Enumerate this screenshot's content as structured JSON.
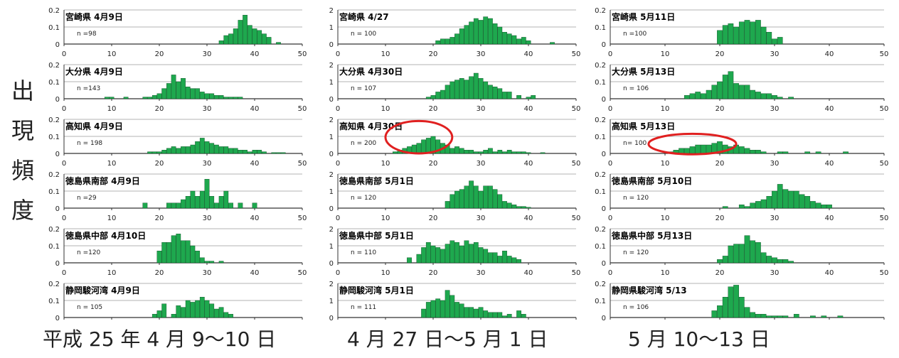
{
  "y_axis_label": [
    "出",
    "現",
    "頻",
    "度"
  ],
  "column_labels": [
    "平成 25 年 4 月 9～10 日",
    "4 月 27 日～5 月 1 日",
    "5 月 10～13 日"
  ],
  "colors": {
    "bar": "#1ea84e",
    "bar_edge": "#0b4a22",
    "axis": "#333333",
    "highlight_circle": "#e02020"
  },
  "chart_data": [
    {
      "type": "bar",
      "title": "宮崎県 4月9日",
      "n_label": "n =98",
      "xlim": [
        0,
        50
      ],
      "ylim": [
        0,
        0.2
      ],
      "yticks": [
        "0",
        "0.1",
        "0.2"
      ],
      "xticks": [
        "0",
        "10",
        "20",
        "30",
        "40",
        "50"
      ],
      "x": [
        33,
        34,
        35,
        36,
        37,
        38,
        39,
        40,
        41,
        42,
        43,
        45
      ],
      "values": [
        0.02,
        0.05,
        0.06,
        0.09,
        0.14,
        0.17,
        0.11,
        0.09,
        0.08,
        0.06,
        0.04,
        0.01
      ]
    },
    {
      "type": "bar",
      "title": "宮崎県 4/27",
      "n_label": "n = 100",
      "xlim": [
        0,
        50
      ],
      "ylim": [
        0,
        2
      ],
      "yticks": [
        "0",
        "1",
        "2"
      ],
      "xticks": [
        "0",
        "10",
        "20",
        "30",
        "40",
        "50"
      ],
      "x": [
        21,
        22,
        23,
        24,
        25,
        26,
        27,
        28,
        29,
        30,
        31,
        32,
        33,
        34,
        35,
        36,
        37,
        38,
        39,
        40,
        45
      ],
      "values": [
        0.2,
        0.3,
        0.3,
        0.4,
        0.6,
        0.9,
        1.1,
        1.3,
        1.5,
        1.4,
        1.6,
        1.5,
        1.2,
        1.0,
        0.7,
        0.6,
        0.5,
        0.3,
        0.4,
        0.2,
        0.1
      ]
    },
    {
      "type": "bar",
      "title": "宮崎県 5月11日",
      "n_label": "n =100",
      "xlim": [
        0,
        50
      ],
      "ylim": [
        0,
        0.2
      ],
      "yticks": [
        "0",
        "0.1",
        "0.2"
      ],
      "xticks": [
        "0",
        "10",
        "20",
        "30",
        "40",
        "50"
      ],
      "x": [
        20,
        21,
        22,
        23,
        24,
        25,
        26,
        27,
        28,
        29,
        30,
        31
      ],
      "values": [
        0.08,
        0.11,
        0.12,
        0.1,
        0.13,
        0.14,
        0.13,
        0.14,
        0.1,
        0.07,
        0.03,
        0.04
      ]
    },
    {
      "type": "bar",
      "title": "大分県 4月9日",
      "n_label": "n =143",
      "xlim": [
        0,
        50
      ],
      "ylim": [
        0,
        0.2
      ],
      "yticks": [
        "0",
        "0.1",
        "0.2"
      ],
      "xticks": [
        "0",
        "10",
        "20",
        "30",
        "40",
        "50"
      ],
      "x": [
        9,
        10,
        13,
        17,
        18,
        19,
        20,
        21,
        22,
        23,
        24,
        25,
        26,
        27,
        28,
        29,
        30,
        31,
        32,
        33,
        34,
        35,
        36,
        37
      ],
      "values": [
        0.01,
        0.01,
        0.01,
        0.01,
        0.01,
        0.02,
        0.03,
        0.06,
        0.09,
        0.14,
        0.1,
        0.12,
        0.07,
        0.06,
        0.06,
        0.04,
        0.03,
        0.03,
        0.02,
        0.02,
        0.01,
        0.01,
        0.01,
        0.01
      ]
    },
    {
      "type": "bar",
      "title": "大分県 4月30日",
      "n_label": "n = 107",
      "xlim": [
        0,
        50
      ],
      "ylim": [
        0,
        2
      ],
      "yticks": [
        "0",
        "1",
        "2"
      ],
      "xticks": [
        "0",
        "10",
        "20",
        "30",
        "40",
        "50"
      ],
      "x": [
        19,
        20,
        21,
        22,
        23,
        24,
        25,
        26,
        27,
        28,
        29,
        30,
        31,
        32,
        33,
        34,
        35,
        36,
        38,
        40,
        41
      ],
      "values": [
        0.1,
        0.2,
        0.4,
        0.5,
        0.8,
        1.0,
        1.1,
        1.2,
        1.1,
        1.3,
        1.5,
        1.2,
        1.0,
        0.8,
        0.7,
        0.6,
        0.4,
        0.4,
        0.2,
        0.1,
        0.2
      ]
    },
    {
      "type": "bar",
      "title": "大分県 5月13日",
      "n_label": "n = 106",
      "xlim": [
        0,
        50
      ],
      "ylim": [
        0,
        0.2
      ],
      "yticks": [
        "0",
        "0.1",
        "0.2"
      ],
      "xticks": [
        "0",
        "10",
        "20",
        "30",
        "40",
        "50"
      ],
      "x": [
        14,
        15,
        16,
        17,
        18,
        19,
        20,
        21,
        22,
        23,
        24,
        25,
        26,
        27,
        28,
        29,
        30,
        31,
        33
      ],
      "values": [
        0.02,
        0.03,
        0.04,
        0.03,
        0.05,
        0.08,
        0.1,
        0.14,
        0.16,
        0.09,
        0.08,
        0.08,
        0.05,
        0.04,
        0.03,
        0.03,
        0.02,
        0.01,
        0.01
      ]
    },
    {
      "type": "bar",
      "title": "高知県 4月9日",
      "n_label": "n = 198",
      "xlim": [
        0,
        50
      ],
      "ylim": [
        0,
        0.2
      ],
      "yticks": [
        "0",
        "0.1",
        "0.2"
      ],
      "xticks": [
        "0",
        "10",
        "20",
        "30",
        "40",
        "50"
      ],
      "x": [
        18,
        19,
        20,
        21,
        22,
        23,
        24,
        25,
        26,
        27,
        28,
        29,
        30,
        31,
        32,
        33,
        34,
        35,
        36,
        37,
        38,
        39,
        40,
        41,
        42,
        44,
        45,
        46
      ],
      "values": [
        0.01,
        0.01,
        0.01,
        0.02,
        0.03,
        0.04,
        0.03,
        0.04,
        0.04,
        0.05,
        0.07,
        0.09,
        0.07,
        0.06,
        0.05,
        0.04,
        0.04,
        0.03,
        0.03,
        0.02,
        0.02,
        0.01,
        0.02,
        0.02,
        0.01,
        0.005,
        0.005,
        0.005
      ]
    },
    {
      "type": "bar",
      "title": "高知県 4月30日",
      "n_label": "n = 200",
      "xlim": [
        0,
        50
      ],
      "ylim": [
        0,
        2
      ],
      "yticks": [
        "0",
        "1",
        "2"
      ],
      "xticks": [
        "0",
        "10",
        "20",
        "30",
        "40",
        "50"
      ],
      "x": [
        12,
        13,
        14,
        15,
        16,
        17,
        18,
        19,
        20,
        21,
        22,
        23,
        24,
        25,
        26,
        27,
        28,
        29,
        30,
        31,
        32,
        33,
        34,
        35,
        36,
        37,
        38,
        39,
        40,
        43
      ],
      "values": [
        0.1,
        0.2,
        0.3,
        0.4,
        0.5,
        0.6,
        0.8,
        0.9,
        1.0,
        0.8,
        0.6,
        0.5,
        0.3,
        0.4,
        0.3,
        0.2,
        0.2,
        0.1,
        0.1,
        0.2,
        0.3,
        0.1,
        0.2,
        0.1,
        0.2,
        0.1,
        0.1,
        0.1,
        0.05,
        0.05
      ]
    },
    {
      "type": "bar",
      "title": "高知県 5月13日",
      "n_label": "n= 100",
      "xlim": [
        0,
        50
      ],
      "ylim": [
        0,
        0.2
      ],
      "yticks": [
        "0",
        "0.1",
        "0.2"
      ],
      "xticks": [
        "0",
        "10",
        "20",
        "30",
        "40",
        "50"
      ],
      "x": [
        11,
        12,
        13,
        14,
        15,
        16,
        17,
        18,
        19,
        20,
        21,
        22,
        23,
        24,
        25,
        26,
        27,
        28,
        31,
        32,
        36,
        38,
        43
      ],
      "values": [
        0.01,
        0.02,
        0.03,
        0.03,
        0.04,
        0.05,
        0.05,
        0.05,
        0.06,
        0.07,
        0.05,
        0.04,
        0.05,
        0.04,
        0.03,
        0.02,
        0.02,
        0.01,
        0.01,
        0.01,
        0.01,
        0.01,
        0.01
      ]
    },
    {
      "type": "bar",
      "title": "徳島県南部 4月9日",
      "n_label": "n =29",
      "xlim": [
        0,
        50
      ],
      "ylim": [
        0,
        0.2
      ],
      "yticks": [
        "0",
        "0.1",
        "0.2"
      ],
      "xticks": [
        "0",
        "10",
        "20",
        "30",
        "40",
        "50"
      ],
      "x": [
        17,
        22,
        23,
        24,
        25,
        26,
        27,
        28,
        29,
        30,
        31,
        32,
        33,
        34,
        35,
        37,
        40
      ],
      "values": [
        0.03,
        0.03,
        0.03,
        0.03,
        0.05,
        0.07,
        0.1,
        0.07,
        0.1,
        0.17,
        0.07,
        0.03,
        0.07,
        0.1,
        0.03,
        0.03,
        0.03
      ]
    },
    {
      "type": "bar",
      "title": "徳島県南部 5月1日",
      "n_label": "n = 120",
      "xlim": [
        0,
        50
      ],
      "ylim": [
        0,
        2
      ],
      "yticks": [
        "0",
        "1",
        "2"
      ],
      "xticks": [
        "0",
        "10",
        "20",
        "30",
        "40",
        "50"
      ],
      "x": [
        23,
        24,
        25,
        26,
        27,
        28,
        29,
        30,
        31,
        32,
        33,
        34,
        35,
        36,
        37,
        38,
        39,
        40
      ],
      "values": [
        0.4,
        0.8,
        1.0,
        1.1,
        1.3,
        1.6,
        1.3,
        1.0,
        1.3,
        1.3,
        1.1,
        0.8,
        0.4,
        0.3,
        0.2,
        0.1,
        0.1,
        0.05
      ]
    },
    {
      "type": "bar",
      "title": "徳島県南部 5月10日",
      "n_label": "n = 120",
      "xlim": [
        0,
        50
      ],
      "ylim": [
        0,
        0.2
      ],
      "yticks": [
        "0",
        "0.1",
        "0.2"
      ],
      "xticks": [
        "0",
        "10",
        "20",
        "30",
        "40",
        "50"
      ],
      "x": [
        21,
        24,
        25,
        26,
        27,
        28,
        29,
        30,
        31,
        32,
        33,
        34,
        35,
        36,
        37,
        38,
        39,
        40
      ],
      "values": [
        0.01,
        0.02,
        0.01,
        0.03,
        0.04,
        0.05,
        0.07,
        0.1,
        0.14,
        0.11,
        0.1,
        0.1,
        0.08,
        0.07,
        0.04,
        0.03,
        0.02,
        0.02
      ]
    },
    {
      "type": "bar",
      "title": "徳島県中部 4月10日",
      "n_label": "n =120",
      "xlim": [
        0,
        50
      ],
      "ylim": [
        0,
        0.2
      ],
      "yticks": [
        "0",
        "0.1",
        "0.2"
      ],
      "xticks": [
        "0",
        "10",
        "20",
        "30",
        "40",
        "50"
      ],
      "x": [
        20,
        21,
        22,
        23,
        24,
        25,
        26,
        27,
        28,
        29,
        30,
        31,
        33
      ],
      "values": [
        0.07,
        0.12,
        0.12,
        0.16,
        0.17,
        0.13,
        0.13,
        0.1,
        0.07,
        0.03,
        0.01,
        0.01,
        0.01
      ]
    },
    {
      "type": "bar",
      "title": "徳島県中部 5月1日",
      "n_label": "n = 110",
      "xlim": [
        0,
        50
      ],
      "ylim": [
        0,
        2
      ],
      "yticks": [
        "0",
        "1",
        "2"
      ],
      "xticks": [
        "0",
        "10",
        "20",
        "30",
        "40",
        "50"
      ],
      "x": [
        15,
        17,
        18,
        19,
        20,
        21,
        22,
        23,
        24,
        25,
        26,
        27,
        28,
        29,
        30,
        31,
        32,
        33,
        34,
        35,
        36,
        37,
        38
      ],
      "values": [
        0.3,
        0.5,
        0.9,
        1.2,
        1.0,
        0.9,
        0.8,
        1.1,
        1.3,
        1.2,
        1.0,
        1.3,
        1.1,
        1.2,
        0.9,
        0.8,
        0.6,
        0.6,
        0.4,
        0.7,
        0.4,
        0.3,
        0.2
      ]
    },
    {
      "type": "bar",
      "title": "徳島県中部 5月13日",
      "n_label": "n = 120",
      "xlim": [
        0,
        50
      ],
      "ylim": [
        0,
        0.2
      ],
      "yticks": [
        "0",
        "0.1",
        "0.2"
      ],
      "xticks": [
        "0",
        "10",
        "20",
        "30",
        "40",
        "50"
      ],
      "x": [
        20,
        21,
        22,
        23,
        24,
        25,
        26,
        27,
        28,
        29,
        30,
        31,
        32,
        33
      ],
      "values": [
        0.02,
        0.04,
        0.1,
        0.11,
        0.11,
        0.16,
        0.13,
        0.12,
        0.06,
        0.04,
        0.03,
        0.02,
        0.02,
        0.01
      ]
    },
    {
      "type": "bar",
      "title": "静岡駿河湾 4月9日",
      "n_label": "n = 105",
      "xlim": [
        0,
        50
      ],
      "ylim": [
        0,
        0.2
      ],
      "yticks": [
        "0",
        "0.1",
        "0.2"
      ],
      "xticks": [
        "0",
        "10",
        "20",
        "30",
        "40",
        "50"
      ],
      "x": [
        19,
        20,
        21,
        23,
        24,
        25,
        26,
        27,
        28,
        29,
        30,
        31,
        32,
        33,
        34,
        35
      ],
      "values": [
        0.02,
        0.04,
        0.08,
        0.02,
        0.07,
        0.06,
        0.1,
        0.09,
        0.1,
        0.12,
        0.1,
        0.08,
        0.05,
        0.06,
        0.03,
        0.02
      ]
    },
    {
      "type": "bar",
      "title": "静岡駿河湾 5月1日",
      "n_label": "n = 111",
      "xlim": [
        0,
        50
      ],
      "ylim": [
        0,
        2
      ],
      "yticks": [
        "0",
        "1",
        "2"
      ],
      "xticks": [
        "0",
        "10",
        "20",
        "30",
        "40",
        "50"
      ],
      "x": [
        18,
        19,
        20,
        21,
        22,
        23,
        24,
        25,
        26,
        27,
        28,
        29,
        30,
        31,
        32,
        33,
        34,
        35,
        36,
        38,
        39
      ],
      "values": [
        0.5,
        0.9,
        1.0,
        1.1,
        1.0,
        1.6,
        1.3,
        0.9,
        0.8,
        0.6,
        0.6,
        0.5,
        0.6,
        0.4,
        0.3,
        0.3,
        0.3,
        0.1,
        0.2,
        0.4,
        0.2
      ]
    },
    {
      "type": "bar",
      "title": "静岡県駿河湾 5/13",
      "n_label": "n = 106",
      "xlim": [
        0,
        50
      ],
      "ylim": [
        0,
        0.2
      ],
      "yticks": [
        "0",
        "0.1",
        "0.2"
      ],
      "xticks": [
        "0",
        "10",
        "20",
        "30",
        "40",
        "50"
      ],
      "x": [
        19,
        20,
        21,
        22,
        23,
        24,
        25,
        26,
        27,
        28,
        29,
        30,
        31,
        32,
        34,
        37,
        39,
        42
      ],
      "values": [
        0.04,
        0.07,
        0.12,
        0.18,
        0.19,
        0.12,
        0.06,
        0.03,
        0.02,
        0.02,
        0.01,
        0.01,
        0.01,
        0.01,
        0.02,
        0.01,
        0.01,
        0.01
      ]
    }
  ],
  "annotations": [
    {
      "chart_index": 7,
      "shape": "ellipse",
      "center_x": 17,
      "center_y": 0.95,
      "rx": 7,
      "ry": 0.95
    },
    {
      "chart_index": 8,
      "shape": "ellipse",
      "center_x": 15,
      "center_y": 0.055,
      "rx": 8,
      "ry": 0.06
    }
  ]
}
